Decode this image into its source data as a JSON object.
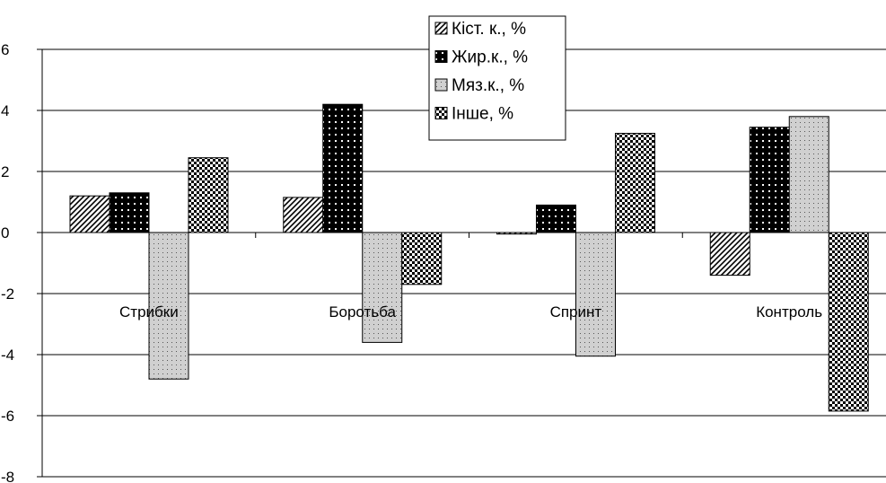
{
  "chart_data": {
    "type": "bar",
    "categories": [
      "Стрибки",
      "Боротьба",
      "Спринт",
      "Контроль"
    ],
    "series": [
      {
        "name": "Кіст. к., %",
        "values": [
          1.2,
          1.15,
          -0.05,
          -1.4
        ],
        "pattern": "diagonal"
      },
      {
        "name": "Жир.к., %",
        "values": [
          1.3,
          4.2,
          0.9,
          3.45
        ],
        "pattern": "black-dots"
      },
      {
        "name": "Мяз.к., %",
        "values": [
          -4.8,
          -3.6,
          -4.05,
          3.8
        ],
        "pattern": "light-dots"
      },
      {
        "name": "Інше, %",
        "values": [
          2.45,
          -1.7,
          3.25,
          -5.85
        ],
        "pattern": "checker"
      }
    ],
    "ylim": [
      -8,
      6
    ],
    "yticks": [
      6,
      4,
      2,
      0,
      -2,
      -4,
      -6,
      -8
    ],
    "grid": true,
    "legend_position": "top-center",
    "colors": {
      "ink": "#000000",
      "light_fill": "#cccccc",
      "grid": "#000000"
    }
  }
}
